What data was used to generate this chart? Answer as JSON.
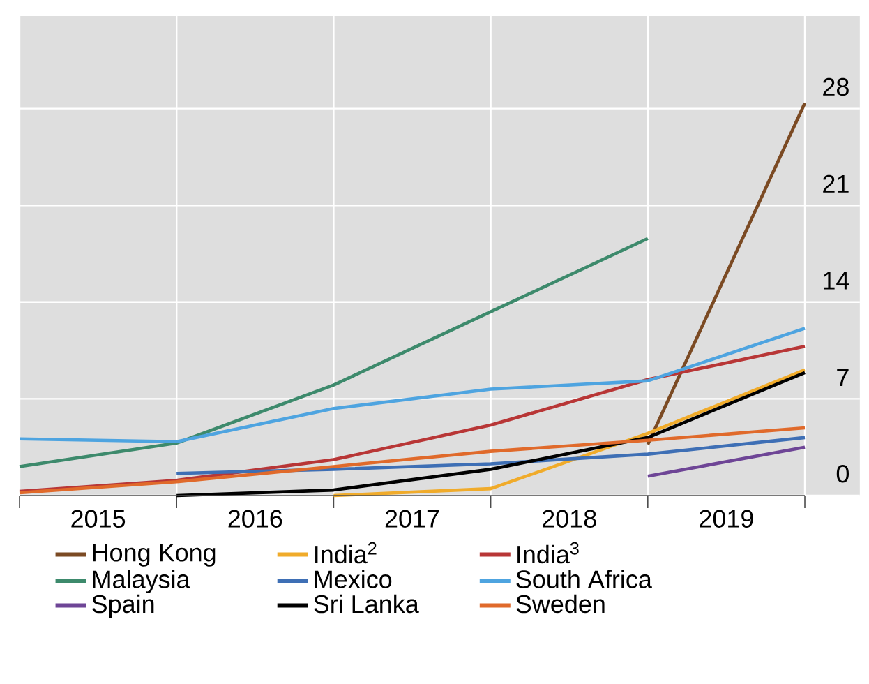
{
  "chart_data": {
    "type": "line",
    "xlim": [
      2015,
      2020.35
    ],
    "ylim": [
      0,
      34.7
    ],
    "xticks": [
      {
        "value": 2015,
        "label": null
      },
      {
        "value": 2016,
        "label": null
      },
      {
        "value": 2017,
        "label": null
      },
      {
        "value": 2018,
        "label": null
      },
      {
        "value": 2019,
        "label": null
      },
      {
        "value": 2020,
        "label": null
      },
      {
        "value": 2015.5,
        "label": "2015"
      },
      {
        "value": 2016.5,
        "label": "2016"
      },
      {
        "value": 2017.5,
        "label": "2017"
      },
      {
        "value": 2018.5,
        "label": "2018"
      },
      {
        "value": 2019.5,
        "label": "2019"
      }
    ],
    "yticks": [
      0,
      7,
      14,
      21,
      28
    ],
    "grid": true,
    "legend": "bottom",
    "series": [
      {
        "name": "Hong Kong",
        "color": "#7b4a23",
        "x": [
          2019,
          2020
        ],
        "values": [
          3.7,
          28.4
        ]
      },
      {
        "name": "India$^{2}$",
        "color": "#f0ab2a",
        "x": [
          2017,
          2018,
          2019,
          2020
        ],
        "values": [
          0,
          0.5,
          4.5,
          9.1
        ]
      },
      {
        "name": "India$^{3}$",
        "color": "#b83636",
        "x": [
          2015,
          2016,
          2017,
          2018,
          2019,
          2020
        ],
        "values": [
          0.3,
          1.1,
          2.6,
          5.1,
          8.4,
          10.8
        ]
      },
      {
        "name": "Malaysia",
        "color": "#3d8a6c",
        "x": [
          2015,
          2016,
          2017,
          2018,
          2019
        ],
        "values": [
          2.1,
          3.8,
          8.0,
          13.3,
          18.6
        ]
      },
      {
        "name": "Mexico",
        "color": "#3e6fb5",
        "x": [
          2016,
          2017,
          2018,
          2019,
          2020
        ],
        "values": [
          1.6,
          1.9,
          2.3,
          3.0,
          4.2
        ]
      },
      {
        "name": "South Africa",
        "color": "#4ea4e0",
        "x": [
          2015,
          2016,
          2017,
          2018,
          2019,
          2020
        ],
        "values": [
          4.1,
          3.9,
          6.3,
          7.7,
          8.3,
          12.1
        ]
      },
      {
        "name": "Spain",
        "color": "#6e4596",
        "x": [
          2019,
          2020
        ],
        "values": [
          1.4,
          3.5
        ]
      },
      {
        "name": "Sri Lanka",
        "color": "#000000",
        "x": [
          2016,
          2017,
          2018,
          2019,
          2020
        ],
        "values": [
          0,
          0.4,
          1.9,
          4.2,
          8.9
        ]
      },
      {
        "name": "Sweden",
        "color": "#e06a2b",
        "x": [
          2015,
          2016,
          2017,
          2018,
          2019,
          2020
        ],
        "values": [
          0.2,
          1.0,
          2.1,
          3.2,
          4.0,
          4.9
        ]
      }
    ]
  }
}
